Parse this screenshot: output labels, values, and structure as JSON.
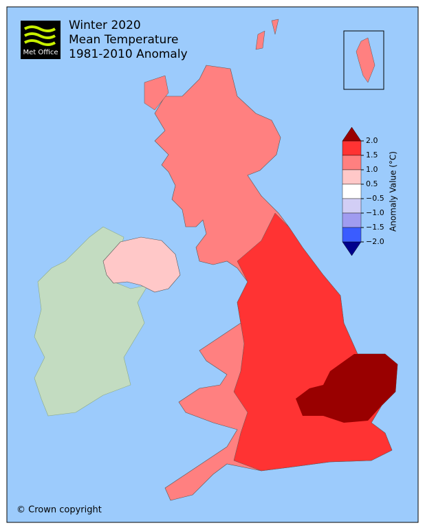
{
  "header": {
    "logo": "Met Office",
    "title_lines": [
      "Winter 2020",
      "Mean Temperature",
      "1981-2010 Anomaly"
    ]
  },
  "colorbar": {
    "label": "Anomaly Value (°C)",
    "ticks": [
      {
        "value": 2,
        "label": "2.0"
      },
      {
        "value": 1.5,
        "label": "1.5"
      },
      {
        "value": 1,
        "label": "1.0"
      },
      {
        "value": 0.5,
        "label": "0.5"
      },
      {
        "value": -0.5,
        "label": "−0.5"
      },
      {
        "value": -1,
        "label": "−1.0"
      },
      {
        "value": -1.5,
        "label": "−1.5"
      },
      {
        "value": -2,
        "label": "−2.0"
      }
    ],
    "colors": [
      "#ff3333",
      "#ff8080",
      "#ffc8c8",
      "#ffffff",
      "#d2cef5",
      "#a09cf0",
      "#3a5cff"
    ],
    "over_color": "#990000",
    "under_color": "#00008b"
  },
  "footer": {
    "copyright": "© Crown copyright"
  }
}
